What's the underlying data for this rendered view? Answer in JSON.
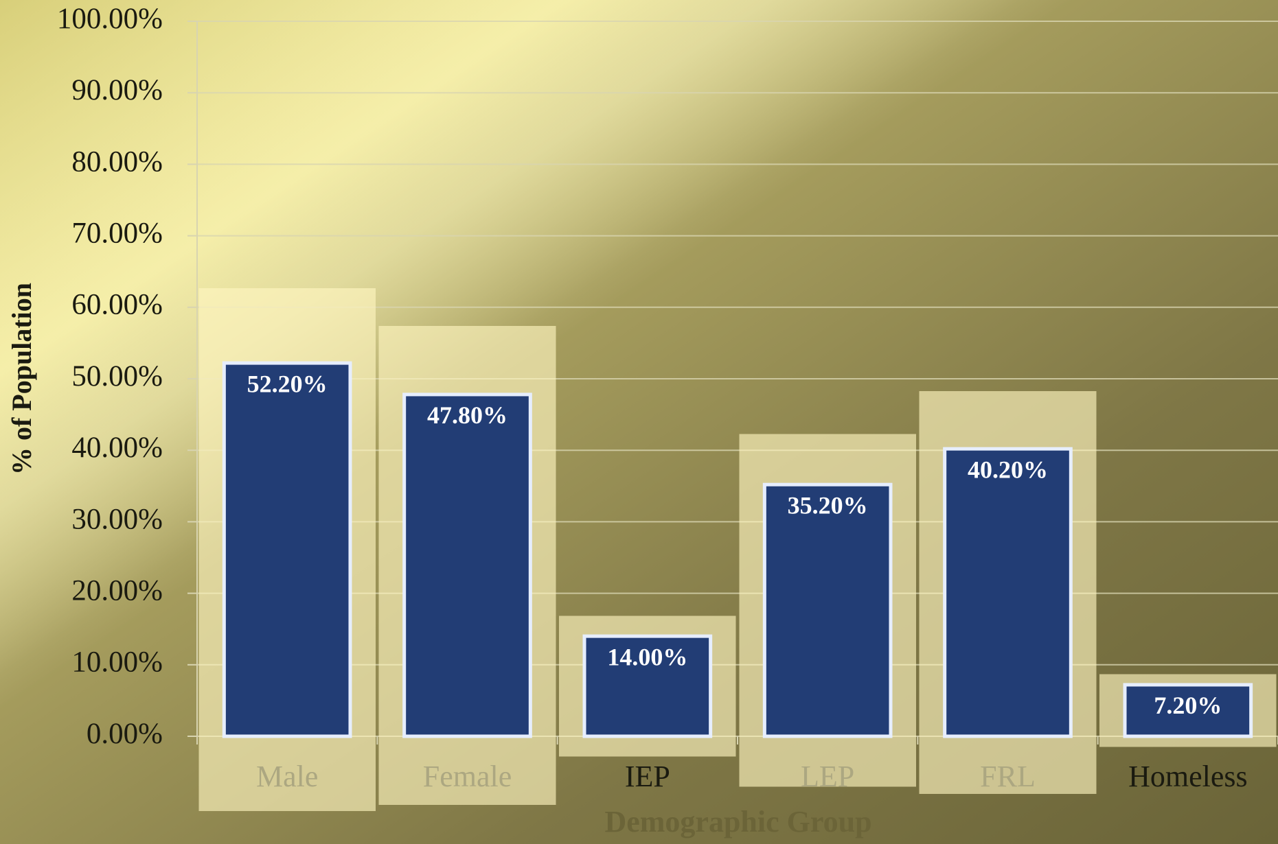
{
  "chart_data": {
    "type": "bar",
    "x_label": "Demographic Group",
    "y_label": "% of Population",
    "categories": [
      "Male",
      "Female",
      "IEP",
      "LEP",
      "FRL",
      "Homeless"
    ],
    "values": [
      52.2,
      47.8,
      14.0,
      35.2,
      40.2,
      7.2
    ],
    "value_labels": [
      "52.20%",
      "47.80%",
      "14.00%",
      "35.20%",
      "40.20%",
      "7.20%"
    ],
    "color": "#233c74",
    "ylim": [
      0,
      100
    ],
    "yticks": [
      {
        "value": 0,
        "label": "0.00%"
      },
      {
        "value": 10,
        "label": "10.00%"
      },
      {
        "value": 20,
        "label": "20.00%"
      },
      {
        "value": 30,
        "label": "30.00%"
      },
      {
        "value": 40,
        "label": "40.00%"
      },
      {
        "value": 50,
        "label": "50.00%"
      },
      {
        "value": 60,
        "label": "60.00%"
      },
      {
        "value": 70,
        "label": "70.00%"
      },
      {
        "value": 80,
        "label": "80.00%"
      },
      {
        "value": 90,
        "label": "90.00%"
      },
      {
        "value": 100,
        "label": "100.00%"
      }
    ],
    "grid": true
  }
}
